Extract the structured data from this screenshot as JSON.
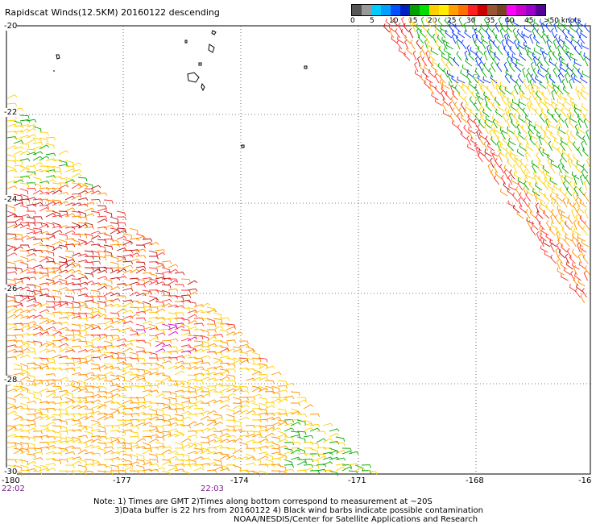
{
  "title": "Rapidscat Winds(12.5KM) 20160122 descending",
  "legend": {
    "colors": [
      "#555555",
      "#999999",
      "#00ccff",
      "#00a0ff",
      "#0050ff",
      "#0020c0",
      "#00a000",
      "#00dd00",
      "#ffd000",
      "#ffee00",
      "#ffa000",
      "#ff7000",
      "#ff2020",
      "#cc0000",
      "#995533",
      "#774422",
      "#ff00ff",
      "#cc00cc",
      "#9900cc",
      "#550099"
    ],
    "labels": [
      "0",
      "5",
      "10",
      "15",
      "20",
      "25",
      "30",
      "35",
      "40",
      "45",
      ">50 knots"
    ]
  },
  "axes": {
    "lat_labels": [
      "-20",
      "-22",
      "-24",
      "-26",
      "-28",
      "-30"
    ],
    "lon_labels": [
      "-180",
      "-177",
      "-174",
      "-171",
      "-168",
      "-16"
    ]
  },
  "times": [
    "22:02",
    "22:03"
  ],
  "notes": [
    "Note: 1) Times are GMT 2)Times along bottom correspond to measurement at ~20S",
    "3)Data buffer is 22 hrs from 20160122 4) Black wind barbs indicate possible contamination",
    "NOAA/NESDIS/Center for Satellite Applications and Research"
  ]
}
